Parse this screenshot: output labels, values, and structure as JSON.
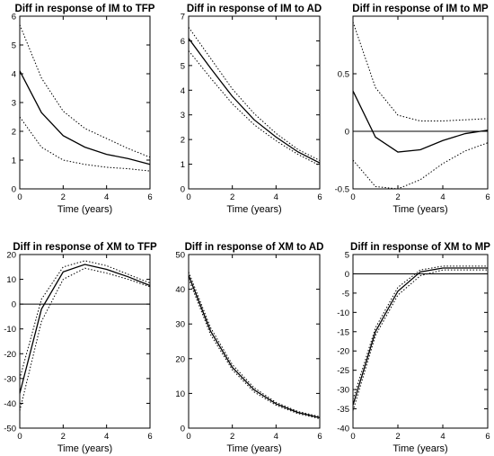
{
  "chart_data": [
    {
      "type": "line",
      "title": "Diff in response of IM to TFP",
      "xlabel": "Time (years)",
      "xlim": [
        0,
        6
      ],
      "ylim": [
        0,
        6
      ],
      "xticks": [
        0,
        2,
        4,
        6
      ],
      "yticks": [
        0,
        1,
        2,
        3,
        4,
        5,
        6
      ],
      "zero_line": false,
      "series": [
        {
          "style": "solid",
          "x": [
            0,
            1,
            2,
            3,
            4,
            5,
            6
          ],
          "y": [
            4.1,
            2.65,
            1.85,
            1.45,
            1.2,
            1.05,
            0.85
          ]
        },
        {
          "style": "dotted",
          "x": [
            0,
            1,
            2,
            3,
            4,
            5,
            6
          ],
          "y": [
            5.7,
            3.85,
            2.7,
            2.1,
            1.75,
            1.4,
            1.1
          ]
        },
        {
          "style": "dotted",
          "x": [
            0,
            1,
            2,
            3,
            4,
            5,
            6
          ],
          "y": [
            2.5,
            1.45,
            1.0,
            0.85,
            0.75,
            0.7,
            0.62
          ]
        }
      ]
    },
    {
      "type": "line",
      "title": "Diff in response of IM to AD",
      "xlabel": "Time (years)",
      "xlim": [
        0,
        6
      ],
      "ylim": [
        0,
        7
      ],
      "xticks": [
        0,
        2,
        4,
        6
      ],
      "yticks": [
        0,
        1,
        2,
        3,
        4,
        5,
        6,
        7
      ],
      "zero_line": false,
      "series": [
        {
          "style": "solid",
          "x": [
            0,
            1,
            2,
            3,
            4,
            5,
            6
          ],
          "y": [
            6.1,
            4.9,
            3.75,
            2.8,
            2.1,
            1.5,
            1.05
          ]
        },
        {
          "style": "dotted",
          "x": [
            0,
            1,
            2,
            3,
            4,
            5,
            6
          ],
          "y": [
            6.55,
            5.3,
            4.05,
            3.05,
            2.25,
            1.6,
            1.15
          ]
        },
        {
          "style": "dotted",
          "x": [
            0,
            1,
            2,
            3,
            4,
            5,
            6
          ],
          "y": [
            5.6,
            4.5,
            3.45,
            2.6,
            1.95,
            1.4,
            0.95
          ]
        }
      ]
    },
    {
      "type": "line",
      "title": "Diff in response of IM to MP",
      "xlabel": "Time (years)",
      "xlim": [
        0,
        6
      ],
      "ylim": [
        -0.5,
        1.0
      ],
      "xticks": [
        0,
        2,
        4,
        6
      ],
      "yticks": [
        -0.5,
        0,
        0.5
      ],
      "zero_line": true,
      "series": [
        {
          "style": "solid",
          "x": [
            0,
            1,
            2,
            3,
            4,
            5,
            6
          ],
          "y": [
            0.35,
            -0.05,
            -0.18,
            -0.16,
            -0.08,
            -0.02,
            0.01
          ]
        },
        {
          "style": "dotted",
          "x": [
            0,
            1,
            2,
            3,
            4,
            5,
            6
          ],
          "y": [
            0.95,
            0.38,
            0.14,
            0.09,
            0.09,
            0.1,
            0.11
          ]
        },
        {
          "style": "dotted",
          "x": [
            0,
            1,
            2,
            3,
            4,
            5,
            6
          ],
          "y": [
            -0.25,
            -0.48,
            -0.5,
            -0.42,
            -0.28,
            -0.17,
            -0.1
          ]
        }
      ]
    },
    {
      "type": "line",
      "title": "Diff in response of XM to TFP",
      "xlabel": "Time (years)",
      "xlim": [
        0,
        6
      ],
      "ylim": [
        -50,
        20
      ],
      "xticks": [
        0,
        2,
        4,
        6
      ],
      "yticks": [
        -50,
        -40,
        -30,
        -20,
        -10,
        0,
        10,
        20
      ],
      "zero_line": true,
      "series": [
        {
          "style": "solid",
          "x": [
            0,
            1,
            2,
            3,
            4,
            5,
            6
          ],
          "y": [
            -36,
            -2,
            13,
            16,
            14,
            11,
            7.5
          ]
        },
        {
          "style": "dotted",
          "x": [
            0,
            1,
            2,
            3,
            4,
            5,
            6
          ],
          "y": [
            -30,
            2,
            15,
            17.5,
            15.5,
            12,
            8.5
          ]
        },
        {
          "style": "dotted",
          "x": [
            0,
            1,
            2,
            3,
            4,
            5,
            6
          ],
          "y": [
            -43,
            -7,
            10,
            14.5,
            12.5,
            10,
            7
          ]
        }
      ]
    },
    {
      "type": "line",
      "title": "Diff in response of XM to AD",
      "xlabel": "Time (years)",
      "xlim": [
        0,
        6
      ],
      "ylim": [
        0,
        50
      ],
      "xticks": [
        0,
        2,
        4,
        6
      ],
      "yticks": [
        0,
        10,
        20,
        30,
        40,
        50
      ],
      "zero_line": false,
      "series": [
        {
          "style": "solid",
          "x": [
            0,
            1,
            2,
            3,
            4,
            5,
            6
          ],
          "y": [
            44,
            28,
            17.5,
            11,
            7,
            4.5,
            3
          ]
        },
        {
          "style": "dotted",
          "x": [
            0,
            1,
            2,
            3,
            4,
            5,
            6
          ],
          "y": [
            45,
            29,
            18.3,
            11.6,
            7.4,
            4.8,
            3.3
          ]
        },
        {
          "style": "dotted",
          "x": [
            0,
            1,
            2,
            3,
            4,
            5,
            6
          ],
          "y": [
            43,
            27,
            16.8,
            10.4,
            6.6,
            4.2,
            2.7
          ]
        }
      ]
    },
    {
      "type": "line",
      "title": "Diff in response of XM to MP",
      "xlabel": "Time (years)",
      "xlim": [
        0,
        6
      ],
      "ylim": [
        -40,
        5
      ],
      "xticks": [
        0,
        2,
        4,
        6
      ],
      "yticks": [
        -40,
        -35,
        -30,
        -25,
        -20,
        -15,
        -10,
        -5,
        0,
        5
      ],
      "zero_line": true,
      "series": [
        {
          "style": "solid",
          "x": [
            0,
            1,
            2,
            3,
            4,
            5,
            6
          ],
          "y": [
            -34,
            -15,
            -4.5,
            0.5,
            1.5,
            1.5,
            1.5
          ]
        },
        {
          "style": "dotted",
          "x": [
            0,
            1,
            2,
            3,
            4,
            5,
            6
          ],
          "y": [
            -32.5,
            -14,
            -3.5,
            1,
            2,
            2,
            2
          ]
        },
        {
          "style": "dotted",
          "x": [
            0,
            1,
            2,
            3,
            4,
            5,
            6
          ],
          "y": [
            -35.5,
            -16,
            -5.5,
            -0.5,
            1,
            1,
            1
          ]
        }
      ]
    }
  ]
}
